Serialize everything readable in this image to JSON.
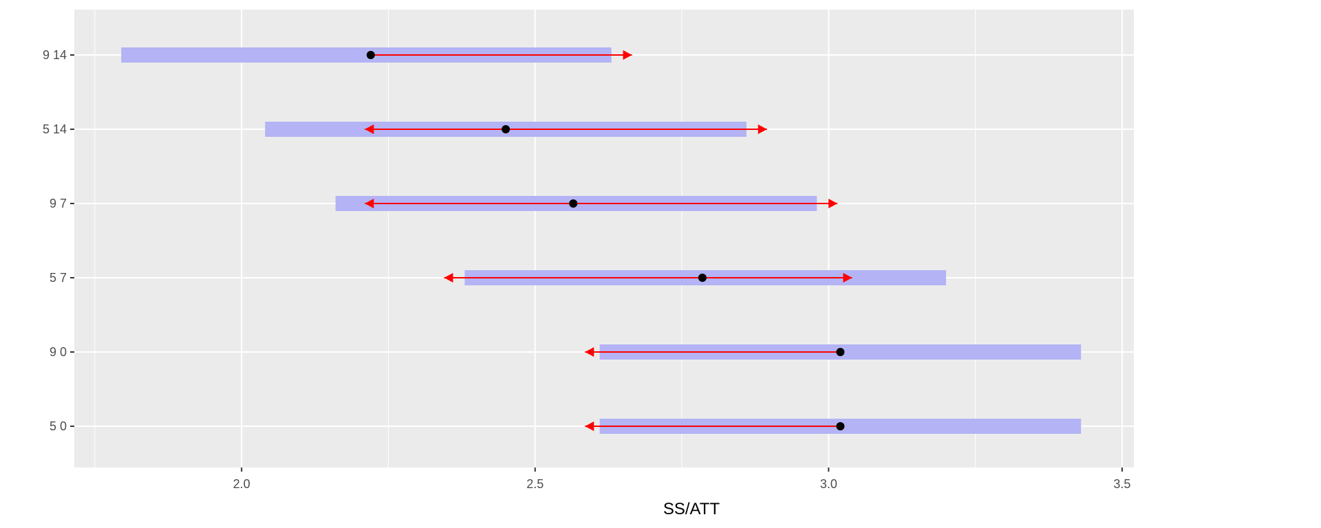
{
  "chart_data": {
    "type": "interval",
    "title": "",
    "xlabel": "SS/ATT",
    "ylabel": "",
    "xlim": [
      1.715,
      3.52
    ],
    "x_ticks": [
      2.0,
      2.5,
      3.0,
      3.5
    ],
    "x_tick_labels": [
      "2.0",
      "2.5",
      "3.0",
      "3.5"
    ],
    "grid": true,
    "categories": [
      "9 14",
      "5 14",
      "9 7",
      "5 7",
      "9 0",
      "5 0"
    ],
    "series": [
      {
        "mark": "band",
        "color": "#b3b3f5",
        "values": [
          [
            1.795,
            2.63
          ],
          [
            2.04,
            2.86
          ],
          [
            2.16,
            2.98
          ],
          [
            2.38,
            3.2
          ],
          [
            2.61,
            3.43
          ],
          [
            2.61,
            3.43
          ]
        ]
      },
      {
        "mark": "arrow",
        "color": "#ff0000",
        "values": [
          [
            2.22,
            2.665
          ],
          [
            2.21,
            2.895
          ],
          [
            2.21,
            3.015
          ],
          [
            2.345,
            3.04
          ],
          [
            2.585,
            3.02
          ],
          [
            2.585,
            3.02
          ]
        ],
        "arrow_left": [
          false,
          true,
          true,
          true,
          true,
          true
        ],
        "arrow_right": [
          true,
          true,
          true,
          true,
          false,
          false
        ]
      },
      {
        "mark": "point",
        "color": "#000000",
        "values": [
          2.22,
          2.45,
          2.565,
          2.785,
          3.02,
          3.02
        ]
      }
    ]
  }
}
